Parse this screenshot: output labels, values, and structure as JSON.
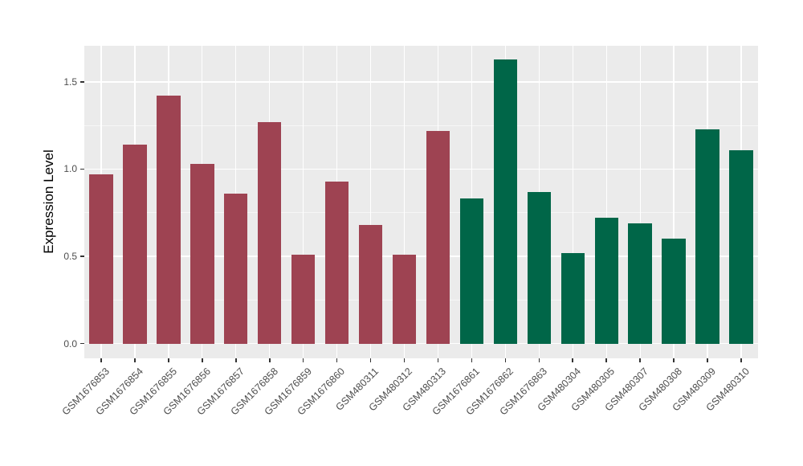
{
  "chart_data": {
    "type": "bar",
    "title": "",
    "xlabel": "",
    "ylabel": "Expression Level",
    "categories": [
      "GSM1676853",
      "GSM1676854",
      "GSM1676855",
      "GSM1676856",
      "GSM1676857",
      "GSM1676858",
      "GSM1676859",
      "GSM1676860",
      "GSM480311",
      "GSM480312",
      "GSM480313",
      "GSM1676861",
      "GSM1676862",
      "GSM1676863",
      "GSM480304",
      "GSM480305",
      "GSM480307",
      "GSM480308",
      "GSM480309",
      "GSM480310"
    ],
    "values": [
      0.97,
      1.14,
      1.42,
      1.03,
      0.86,
      1.27,
      0.51,
      0.93,
      0.68,
      0.51,
      1.22,
      0.83,
      1.63,
      0.87,
      0.52,
      0.72,
      0.69,
      0.6,
      1.23,
      1.11
    ],
    "group_of": [
      0,
      0,
      0,
      0,
      0,
      0,
      0,
      0,
      0,
      0,
      0,
      1,
      1,
      1,
      1,
      1,
      1,
      1,
      1,
      1
    ],
    "groups": [
      {
        "name": "group-1",
        "color": "#9E4352"
      },
      {
        "name": "group-2",
        "color": "#006648"
      }
    ],
    "yticks": [
      0.0,
      0.5,
      1.0,
      1.5
    ],
    "ytick_labels": [
      "0.0",
      "0.5",
      "1.0",
      "1.5"
    ],
    "yminor": [
      0.25,
      0.75,
      1.25
    ],
    "ylim": [
      -0.085,
      1.707
    ],
    "bar_width_ratio": 0.7,
    "grid": "on",
    "legend": "none",
    "panel_bg": "#EBEBEB",
    "grid_major_color": "#FFFFFF",
    "axis_text_color": "#4D4D4D",
    "axis_title_color": "#000000"
  }
}
